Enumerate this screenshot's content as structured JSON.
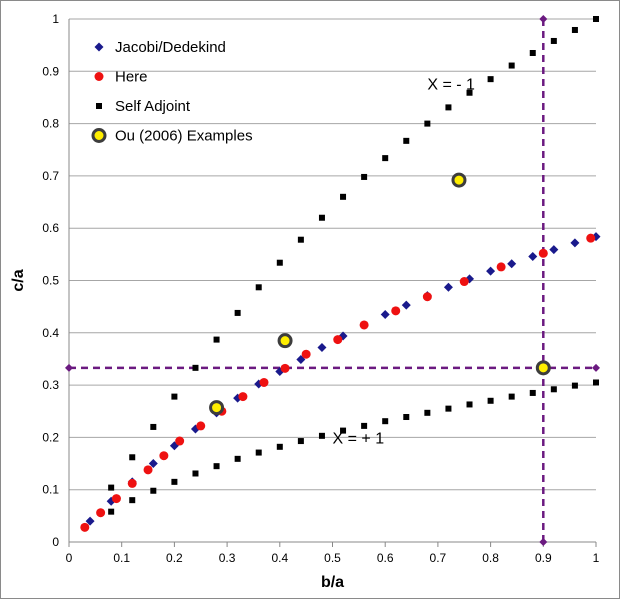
{
  "chart_data": {
    "type": "scatter",
    "title": "",
    "xlabel": "b/a",
    "ylabel": "c/a",
    "xlim": [
      0,
      1
    ],
    "ylim": [
      0,
      1
    ],
    "xticks": [
      "0",
      "0.1",
      "0.2",
      "0.3",
      "0.4",
      "0.5",
      "0.6",
      "0.7",
      "0.8",
      "0.9",
      "1"
    ],
    "yticks": [
      "0",
      "0.1",
      "0.2",
      "0.3",
      "0.4",
      "0.5",
      "0.6",
      "0.7",
      "0.8",
      "0.9",
      "1"
    ],
    "grid": "horizontal",
    "legend_position": "top-left",
    "series": [
      {
        "name": "Jacobi/Dedekind",
        "marker": "diamond",
        "color": "#1a1a8c",
        "x": [
          0.04,
          0.08,
          0.12,
          0.16,
          0.2,
          0.24,
          0.28,
          0.32,
          0.36,
          0.4,
          0.44,
          0.48,
          0.52,
          0.56,
          0.6,
          0.64,
          0.68,
          0.72,
          0.76,
          0.8,
          0.84,
          0.88,
          0.92,
          0.96,
          1.0
        ],
        "y": [
          0.04,
          0.078,
          0.115,
          0.15,
          0.184,
          0.216,
          0.247,
          0.275,
          0.302,
          0.326,
          0.349,
          0.372,
          0.394,
          0.415,
          0.435,
          0.453,
          0.471,
          0.487,
          0.503,
          0.518,
          0.532,
          0.546,
          0.559,
          0.572,
          0.584
        ]
      },
      {
        "name": "Here",
        "marker": "circle",
        "color": "#ee1111",
        "x": [
          0.03,
          0.06,
          0.09,
          0.12,
          0.15,
          0.18,
          0.21,
          0.25,
          0.29,
          0.33,
          0.37,
          0.41,
          0.45,
          0.51,
          0.56,
          0.62,
          0.68,
          0.75,
          0.82,
          0.9,
          0.99
        ],
        "y": [
          0.028,
          0.056,
          0.083,
          0.112,
          0.138,
          0.165,
          0.193,
          0.222,
          0.25,
          0.278,
          0.305,
          0.332,
          0.359,
          0.387,
          0.415,
          0.442,
          0.469,
          0.498,
          0.526,
          0.552,
          0.581
        ]
      },
      {
        "name": "Self Adjoint",
        "marker": "square",
        "color": "#000000",
        "x": [
          0.08,
          0.12,
          0.16,
          0.2,
          0.24,
          0.28,
          0.32,
          0.36,
          0.4,
          0.44,
          0.48,
          0.52,
          0.56,
          0.6,
          0.64,
          0.68,
          0.72,
          0.76,
          0.8,
          0.84,
          0.88,
          0.92,
          0.96,
          1.0,
          0.08,
          0.12,
          0.16,
          0.2,
          0.24,
          0.28,
          0.32,
          0.36,
          0.4,
          0.44,
          0.48,
          0.52,
          0.56,
          0.6,
          0.64,
          0.68,
          0.72,
          0.76,
          0.8,
          0.84,
          0.88,
          0.92,
          0.96,
          1.0
        ],
        "y": [
          0.104,
          0.162,
          0.22,
          0.278,
          0.333,
          0.387,
          0.438,
          0.487,
          0.534,
          0.578,
          0.62,
          0.66,
          0.698,
          0.734,
          0.767,
          0.8,
          0.831,
          0.859,
          0.885,
          0.911,
          0.935,
          0.958,
          0.979,
          1.0,
          0.058,
          0.08,
          0.098,
          0.115,
          0.131,
          0.145,
          0.159,
          0.171,
          0.182,
          0.193,
          0.203,
          0.213,
          0.222,
          0.231,
          0.239,
          0.247,
          0.255,
          0.263,
          0.27,
          0.278,
          0.285,
          0.292,
          0.299,
          0.305
        ]
      },
      {
        "name": "Ou (2006) Examples",
        "marker": "ringed-circle",
        "color": "#ffee00",
        "edge_color": "#3d3d3d",
        "x": [
          0.28,
          0.41,
          0.74,
          0.9
        ],
        "y": [
          0.257,
          0.385,
          0.692,
          0.333
        ]
      }
    ],
    "reference_lines": [
      {
        "orientation": "horizontal",
        "value": 0.333,
        "style": "dashed",
        "color": "#6b1a80"
      },
      {
        "orientation": "vertical",
        "value": 0.9,
        "style": "dashed",
        "color": "#6b1a80"
      }
    ],
    "reference_line_color": "#6b1a80",
    "annotations": [
      {
        "text": "X = - 1",
        "x": 0.68,
        "y": 0.865
      },
      {
        "text": "X = + 1",
        "x": 0.5,
        "y": 0.188
      }
    ]
  }
}
